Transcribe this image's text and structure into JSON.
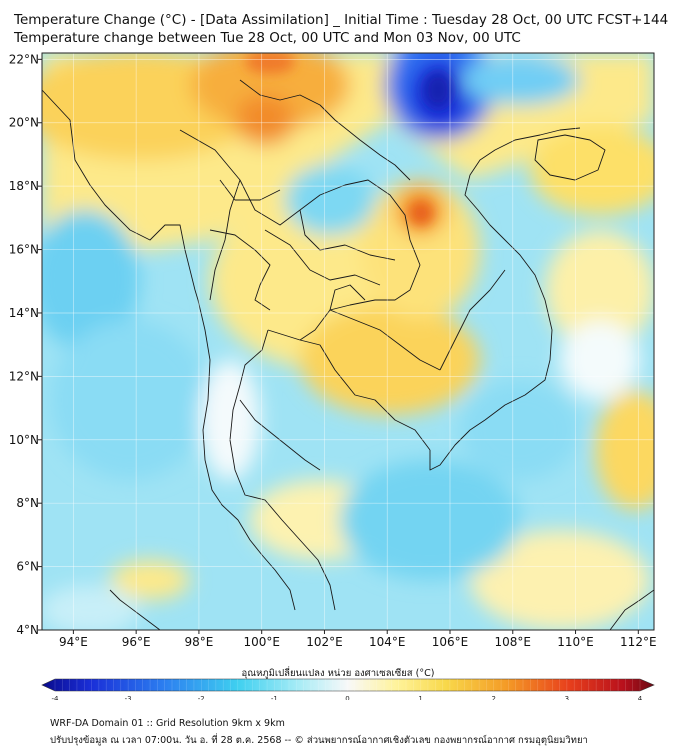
{
  "header": {
    "title_line1": "Temperature Change (°C) - [Data Assimilation] _ Initial Time : Tuesday 28 Oct, 00 UTC FCST+144",
    "title_line2": "Temperature change between Tue 28 Oct, 00 UTC and Mon 03 Nov, 00 UTC"
  },
  "map": {
    "lon_labels": [
      "94°E",
      "96°E",
      "98°E",
      "100°E",
      "102°E",
      "104°E",
      "106°E",
      "108°E",
      "110°E",
      "112°E"
    ],
    "lat_labels": [
      "22°N",
      "20°N",
      "18°N",
      "16°N",
      "14°N",
      "12°N",
      "10°N",
      "8°N",
      "6°N",
      "4°N"
    ],
    "lon_range": [
      93,
      112.5
    ],
    "lat_range": [
      4,
      22.2
    ],
    "field_hotspots": [
      {
        "lon": 105.2,
        "lat": 17.2,
        "value": 2.6
      },
      {
        "lon": 106.2,
        "lat": 20.8,
        "value": -3.8
      },
      {
        "lon": 100.0,
        "lat": 21.8,
        "value": 2.0
      },
      {
        "lon": 99.8,
        "lat": 20.2,
        "value": 1.8
      },
      {
        "lon": 103.8,
        "lat": 13.3,
        "value": 1.5
      },
      {
        "lon": 102.5,
        "lat": 17.8,
        "value": -1.0
      },
      {
        "lon": 94.5,
        "lat": 15.0,
        "value": -1.2
      },
      {
        "lon": 103.5,
        "lat": 7.5,
        "value": -1.0
      },
      {
        "lon": 112.0,
        "lat": 10.0,
        "value": 1.2
      },
      {
        "lon": 110.5,
        "lat": 17.8,
        "value": 1.0
      }
    ]
  },
  "colorbar": {
    "label": "อุณหภูมิเปลี่ยนแปลง หน่วย องศาเซลเซียส (°C)",
    "ticks": [
      "-4",
      "-3",
      "-2",
      "-1",
      "0",
      "1",
      "2",
      "3",
      "4"
    ],
    "min": -4,
    "max": 4
  },
  "footer": {
    "line1": "WRF-DA Domain 01 :: Grid Resolution 9km x 9km",
    "line2": "ปรับปรุงข้อมูล ณ เวลา 07:00น. วัน อ. ที่ 28 ต.ค. 2568 -- © ส่วนพยากรณ์อากาศเชิงตัวเลข กองพยากรณ์อากาศ กรมอุตุนิยมวิทยา"
  },
  "colors": {
    "land_outline": "#1a1a1a",
    "grid": "#ffffff"
  }
}
